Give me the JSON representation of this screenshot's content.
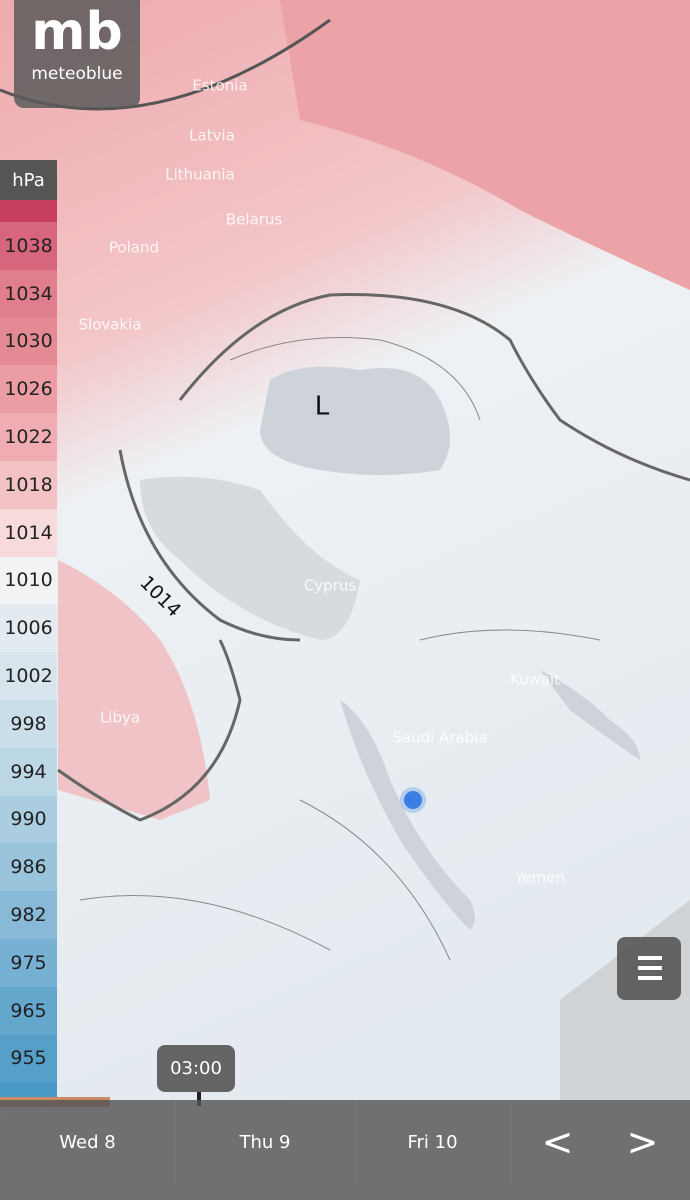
{
  "logo": {
    "mark": "mb",
    "name": "meteoblue"
  },
  "legend": {
    "unit": "hPa",
    "values": [
      1038,
      1034,
      1030,
      1026,
      1022,
      1018,
      1014,
      1010,
      1006,
      1002,
      998,
      994,
      990,
      986,
      982,
      975,
      965,
      955
    ]
  },
  "map": {
    "low_label": "L",
    "isobar_label": "1014",
    "places": [
      "Estonia",
      "Latvia",
      "Lithuania",
      "Belarus",
      "Poland",
      "Slovakia",
      "Cyprus",
      "Libya",
      "Saudi Arabia",
      "Kuwait",
      "Yemen"
    ]
  },
  "timeline": {
    "time": "03:00",
    "days": [
      "Wed 8",
      "Thu 9",
      "Fri 10"
    ],
    "prev": "<",
    "next": ">"
  }
}
